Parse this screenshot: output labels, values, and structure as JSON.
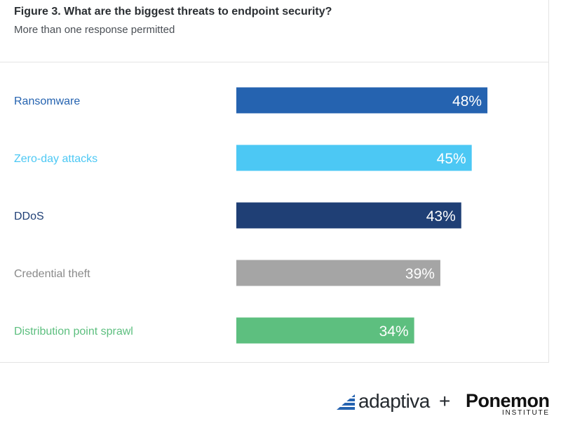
{
  "figure": {
    "title": "Figure 3. What are the biggest threats to endpoint security?",
    "subtitle": "More than one response permitted"
  },
  "chart_data": {
    "type": "bar",
    "orientation": "horizontal",
    "categories": [
      "Ransomware",
      "Zero-day attacks",
      "DDoS",
      "Credential theft",
      "Distribution point sprawl"
    ],
    "values": [
      48,
      45,
      43,
      39,
      34
    ],
    "value_labels": [
      "48%",
      "45%",
      "43%",
      "39%",
      "34%"
    ],
    "colors": [
      "#2563b0",
      "#4cc8f4",
      "#1f3f75",
      "#a5a5a5",
      "#5dbf7f"
    ],
    "label_colors": [
      "#2563b0",
      "#4cc8f4",
      "#1f3f75",
      "#8a8a8a",
      "#5dbf7f"
    ],
    "xlim": [
      0,
      100
    ],
    "grid": false,
    "legend": "none"
  },
  "logos": {
    "adaptiva": "adaptiva",
    "plus": "+",
    "ponemon": "Ponemon",
    "institute": "INSTITUTE"
  }
}
